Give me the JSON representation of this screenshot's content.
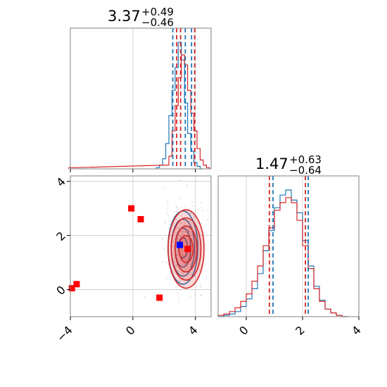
{
  "colors": {
    "blue": "#1f77b4",
    "red": "#d62728",
    "marker_red": "#ff0000",
    "marker_blue": "#0000ff",
    "grid": "#c8c8c8",
    "frame": "#808080"
  },
  "chart_data": {
    "type": "corner",
    "panels": [
      {
        "id": "hist-top",
        "type": "histogram",
        "title_value": "3.37",
        "title_plus": "+0.49",
        "title_minus": "−0.46",
        "xlim": [
          -4,
          5
        ],
        "grid_x": [
          0,
          4
        ],
        "series": [
          {
            "name": "",
            "color": "#1f77b4",
            "x": [
              1.6,
              1.8,
              2.0,
              2.2,
              2.4,
              2.6,
              2.8,
              3.0,
              3.2,
              3.4,
              3.6,
              3.8,
              4.0,
              4.2,
              4.4
            ],
            "values": [
              0.01,
              0.03,
              0.08,
              0.2,
              0.42,
              0.62,
              0.8,
              1.0,
              0.86,
              0.52,
              0.28,
              0.14,
              0.05,
              0.02,
              0.0
            ]
          },
          {
            "name": "",
            "color": "#d62728",
            "x": [
              -4.0,
              -3.6,
              2.2,
              2.4,
              2.6,
              2.8,
              3.0,
              3.2,
              3.4,
              3.6,
              3.8,
              4.0,
              4.2,
              4.4,
              4.6,
              4.8
            ],
            "values": [
              0.01,
              0.01,
              0.03,
              0.1,
              0.3,
              0.5,
              0.72,
              0.9,
              0.82,
              0.62,
              0.44,
              0.3,
              0.16,
              0.07,
              0.03,
              0.01
            ]
          }
        ],
        "quantile_lines": [
          {
            "color": "#1f77b4",
            "x": [
              2.55,
              3.35,
              3.75
            ]
          },
          {
            "color": "#d62728",
            "x": [
              2.8,
              3.05,
              3.95
            ]
          }
        ]
      },
      {
        "id": "scatter-2d",
        "type": "scatter_contour",
        "xlim": [
          -4,
          5
        ],
        "ylim": [
          -1,
          4.2
        ],
        "grid_x": [
          0,
          4
        ],
        "grid_y": [
          0,
          2,
          4
        ],
        "xticks": [
          "−4",
          "0",
          "4"
        ],
        "xtick_values": [
          -4,
          0,
          4
        ],
        "yticks": [
          "0",
          "2",
          "4"
        ],
        "ytick_values": [
          0,
          2,
          4
        ],
        "contours_red": {
          "center": [
            3.4,
            1.5
          ],
          "radii": [
            [
              1.15,
              1.45
            ],
            [
              0.95,
              1.15
            ],
            [
              0.7,
              0.85
            ],
            [
              0.45,
              0.5
            ]
          ]
        },
        "contours_blue": {
          "center": [
            3.2,
            1.55
          ],
          "radii": [
            [
              0.95,
              1.35
            ],
            [
              0.75,
              1.05
            ],
            [
              0.5,
              0.72
            ],
            [
              0.28,
              0.38
            ]
          ]
        },
        "red_markers": [
          [
            -3.9,
            0.05
          ],
          [
            -3.6,
            0.2
          ],
          [
            -0.1,
            3.0
          ],
          [
            0.5,
            2.6
          ],
          [
            1.7,
            -0.3
          ],
          [
            3.5,
            1.5
          ]
        ],
        "blue_markers": [
          [
            3.0,
            1.65
          ]
        ]
      },
      {
        "id": "hist-right",
        "type": "histogram",
        "title_value": "1.47",
        "title_plus": "+0.63",
        "title_minus": "−0.64",
        "xlim": [
          -1,
          4
        ],
        "grid_x": [
          0,
          2
        ],
        "xticks": [
          "0",
          "2",
          "4"
        ],
        "xtick_values": [
          0,
          2,
          4
        ],
        "series": [
          {
            "name": "",
            "color": "#1f77b4",
            "x": [
              -0.9,
              -0.7,
              -0.5,
              -0.3,
              -0.1,
              0.1,
              0.3,
              0.5,
              0.7,
              0.9,
              1.1,
              1.3,
              1.5,
              1.7,
              1.9,
              2.1,
              2.3,
              2.5,
              2.7,
              2.9,
              3.1,
              3.3,
              3.5
            ],
            "values": [
              0.0,
              0.01,
              0.02,
              0.04,
              0.08,
              0.14,
              0.22,
              0.34,
              0.52,
              0.68,
              0.86,
              0.96,
              1.0,
              0.92,
              0.82,
              0.6,
              0.4,
              0.24,
              0.13,
              0.06,
              0.03,
              0.01,
              0.0
            ]
          },
          {
            "name": "",
            "color": "#d62728",
            "x": [
              -0.9,
              -0.7,
              -0.5,
              -0.3,
              -0.1,
              0.1,
              0.3,
              0.5,
              0.7,
              0.9,
              1.1,
              1.3,
              1.5,
              1.7,
              1.9,
              2.1,
              2.3,
              2.5,
              2.7,
              2.9,
              3.1,
              3.3,
              3.5
            ],
            "values": [
              0.01,
              0.02,
              0.04,
              0.07,
              0.12,
              0.18,
              0.28,
              0.4,
              0.56,
              0.7,
              0.84,
              0.9,
              0.94,
              0.9,
              0.76,
              0.56,
              0.38,
              0.22,
              0.12,
              0.06,
              0.03,
              0.01,
              0.0
            ]
          }
        ],
        "quantile_lines": [
          {
            "color": "#1f77b4",
            "x": [
              0.95,
              2.2
            ]
          },
          {
            "color": "#d62728",
            "x": [
              0.82,
              2.1
            ]
          }
        ]
      }
    ]
  }
}
